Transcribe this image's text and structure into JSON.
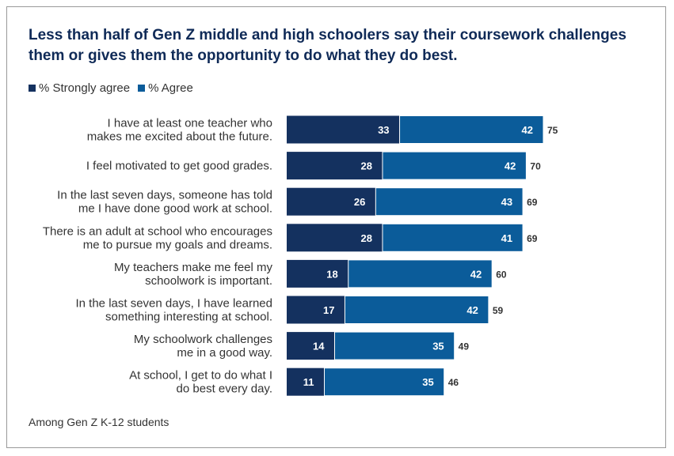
{
  "chart_data": {
    "type": "bar",
    "orientation": "horizontal",
    "stacked": true,
    "title": "Less than half of Gen Z middle and high schoolers say their coursework challenges them or gives them the opportunity to do what they do best.",
    "legend_position": "top-left",
    "categories": [
      [
        "I have at least one teacher who",
        "makes me excited about the future."
      ],
      [
        "I feel motivated to get good grades."
      ],
      [
        "In the last seven days, someone has told",
        "me I have done good work at school."
      ],
      [
        "There is an adult at school who encourages",
        "me to pursue my goals and dreams."
      ],
      [
        "My teachers make me feel my",
        "schoolwork is important."
      ],
      [
        "In the last seven days, I have learned",
        "something interesting at school."
      ],
      [
        "My schoolwork challenges",
        "me in a good way."
      ],
      [
        "At school, I get to do what I",
        "do best every day."
      ]
    ],
    "series": [
      {
        "name": "% Strongly agree",
        "color": "#14315f",
        "values": [
          33,
          28,
          26,
          28,
          18,
          17,
          14,
          11
        ]
      },
      {
        "name": "% Agree",
        "color": "#0b5c9a",
        "values": [
          42,
          42,
          43,
          41,
          42,
          42,
          35,
          35
        ]
      }
    ],
    "totals": [
      75,
      70,
      69,
      69,
      60,
      59,
      49,
      46
    ],
    "xlim": [
      0,
      75
    ],
    "grid": false,
    "footnote": "Among Gen Z K-12 students"
  }
}
